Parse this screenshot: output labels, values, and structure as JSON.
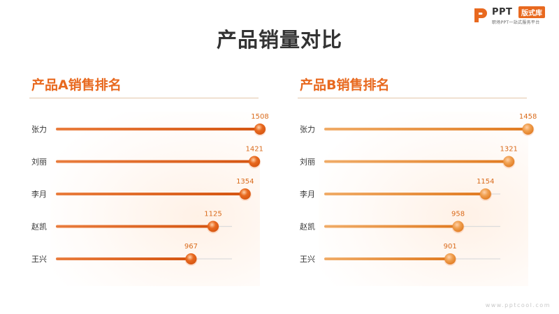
{
  "logo": {
    "ppt_text": "PPT",
    "badge_text": "版式库",
    "subtitle": "职场PPT一站式服务平台"
  },
  "page_title": "产品销量对比",
  "watermark": "www.pptcool.com",
  "colors": {
    "accent": "#e8691f",
    "bar_a": "#e8691f",
    "bar_b": "#f0a050",
    "track": "#dcdcdc",
    "label": "#333333",
    "value_label": "#d96a1a"
  },
  "chart_data": [
    {
      "type": "bar",
      "orientation": "horizontal",
      "title": "产品A销售排名",
      "categories": [
        "张力",
        "刘丽",
        "李月",
        "赵凯",
        "王兴"
      ],
      "values": [
        1508,
        1421,
        1354,
        1125,
        967
      ],
      "xlim": [
        0,
        1800
      ],
      "grid": false,
      "legend": "none"
    },
    {
      "type": "bar",
      "orientation": "horizontal",
      "title": "产品B销售排名",
      "categories": [
        "张力",
        "刘丽",
        "李月",
        "赵凯",
        "王兴"
      ],
      "values": [
        1458,
        1321,
        1154,
        958,
        901
      ],
      "xlim": [
        0,
        1800
      ],
      "grid": false,
      "legend": "none"
    }
  ]
}
